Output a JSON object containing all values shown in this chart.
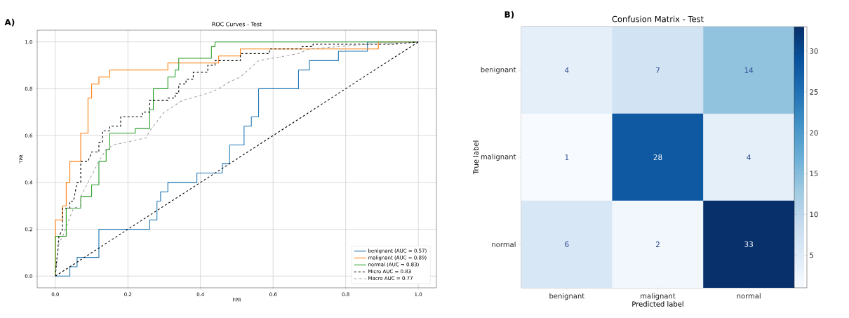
{
  "chart_data": [
    {
      "type": "line",
      "title": "ROC Curves - Test",
      "xlabel": "FPR",
      "ylabel": "TPR",
      "annotations": [
        "A)"
      ],
      "xlim": [
        -0.05,
        1.05
      ],
      "ylim": [
        -0.05,
        1.05
      ],
      "xticks": [
        {
          "value": 0,
          "label": "0.0"
        },
        {
          "value": 0.2,
          "label": "0.2"
        },
        {
          "value": 0.4,
          "label": "0.4"
        },
        {
          "value": 0.6,
          "label": "0.6"
        },
        {
          "value": 0.8,
          "label": "0.8"
        },
        {
          "value": 1,
          "label": "1.0"
        }
      ],
      "yticks": [
        {
          "value": 0,
          "label": "0.0"
        },
        {
          "value": 0.2,
          "label": "0.2"
        },
        {
          "value": 0.4,
          "label": "0.4"
        },
        {
          "value": 0.6,
          "label": "0.6"
        },
        {
          "value": 0.8,
          "label": "0.8"
        },
        {
          "value": 1,
          "label": "1.0"
        }
      ],
      "grid": true,
      "legend": "bottom right",
      "marker": "none",
      "series": [
        {
          "name": "benignant (AUC = 0.57)",
          "color": "#1f77b4",
          "line_style": "solid",
          "x": [
            0,
            0.04,
            0.04,
            0.06,
            0.06,
            0.12,
            0.12,
            0.26,
            0.26,
            0.28,
            0.28,
            0.29,
            0.29,
            0.31,
            0.31,
            0.39,
            0.39,
            0.46,
            0.46,
            0.48,
            0.48,
            0.52,
            0.52,
            0.54,
            0.54,
            0.56,
            0.56,
            0.67,
            0.67,
            0.7,
            0.7,
            0.78,
            0.78,
            0.86,
            0.86,
            1
          ],
          "values": [
            0,
            0,
            0.04,
            0.04,
            0.08,
            0.08,
            0.2,
            0.2,
            0.24,
            0.24,
            0.32,
            0.32,
            0.36,
            0.36,
            0.4,
            0.4,
            0.44,
            0.44,
            0.48,
            0.48,
            0.56,
            0.56,
            0.64,
            0.64,
            0.68,
            0.68,
            0.8,
            0.8,
            0.88,
            0.88,
            0.92,
            0.92,
            0.96,
            0.96,
            1,
            1
          ]
        },
        {
          "name": "malignant (AUC = 0.89)",
          "color": "#ff7f0e",
          "line_style": "solid",
          "x": [
            0,
            0,
            0.02,
            0.02,
            0.03,
            0.03,
            0.04,
            0.04,
            0.07,
            0.07,
            0.09,
            0.09,
            0.1,
            0.1,
            0.12,
            0.12,
            0.15,
            0.15,
            0.31,
            0.31,
            0.45,
            0.45,
            0.51,
            0.51,
            0.89,
            0.89,
            1
          ],
          "values": [
            0,
            0.24,
            0.24,
            0.3,
            0.3,
            0.4,
            0.4,
            0.49,
            0.49,
            0.61,
            0.61,
            0.76,
            0.76,
            0.82,
            0.82,
            0.85,
            0.85,
            0.88,
            0.88,
            0.91,
            0.91,
            0.94,
            0.94,
            0.97,
            0.97,
            1,
            1
          ]
        },
        {
          "name": "normal (AUC = 0.83)",
          "color": "#2ca02c",
          "line_style": "solid",
          "x": [
            0,
            0,
            0.03,
            0.03,
            0.07,
            0.07,
            0.1,
            0.1,
            0.12,
            0.12,
            0.14,
            0.14,
            0.15,
            0.15,
            0.22,
            0.22,
            0.26,
            0.26,
            0.27,
            0.27,
            0.31,
            0.31,
            0.33,
            0.33,
            0.34,
            0.34,
            0.43,
            0.43,
            0.44,
            0.44,
            1
          ],
          "values": [
            0,
            0.17,
            0.17,
            0.29,
            0.29,
            0.34,
            0.34,
            0.39,
            0.39,
            0.49,
            0.49,
            0.54,
            0.54,
            0.61,
            0.61,
            0.63,
            0.63,
            0.71,
            0.71,
            0.8,
            0.8,
            0.85,
            0.85,
            0.88,
            0.88,
            0.93,
            0.93,
            0.98,
            0.98,
            1,
            1
          ]
        },
        {
          "name": "Micro AUC = 0.83",
          "color": "#000000",
          "line_style": "dashed",
          "x": [
            0,
            0.01,
            0.02,
            0.02,
            0.04,
            0.04,
            0.05,
            0.06,
            0.07,
            0.07,
            0.09,
            0.1,
            0.12,
            0.12,
            0.13,
            0.13,
            0.15,
            0.15,
            0.18,
            0.18,
            0.24,
            0.24,
            0.26,
            0.26,
            0.31,
            0.31,
            0.33,
            0.33,
            0.34,
            0.34,
            0.36,
            0.36,
            0.38,
            0.38,
            0.42,
            0.42,
            0.44,
            0.44,
            0.51,
            0.51,
            0.59,
            0.59,
            0.68,
            0.68,
            0.71,
            0.71,
            0.93,
            1
          ],
          "values": [
            0,
            0.17,
            0.2,
            0.29,
            0.29,
            0.32,
            0.32,
            0.4,
            0.4,
            0.49,
            0.49,
            0.53,
            0.53,
            0.57,
            0.57,
            0.62,
            0.62,
            0.64,
            0.64,
            0.68,
            0.68,
            0.7,
            0.7,
            0.75,
            0.75,
            0.76,
            0.76,
            0.78,
            0.78,
            0.82,
            0.82,
            0.84,
            0.84,
            0.87,
            0.87,
            0.9,
            0.9,
            0.92,
            0.92,
            0.95,
            0.95,
            0.97,
            0.97,
            0.98,
            0.98,
            0.99,
            0.99,
            1
          ]
        },
        {
          "name": "Macro AUC = 0.77",
          "color": "#999999",
          "line_style": "dashdot",
          "x": [
            0,
            0.01,
            0.02,
            0.05,
            0.07,
            0.07,
            0.09,
            0.12,
            0.14,
            0.16,
            0.25,
            0.26,
            0.3,
            0.35,
            0.42,
            0.45,
            0.48,
            0.51,
            0.56,
            0.67,
            0.7,
            0.86,
            1
          ],
          "values": [
            0,
            0.14,
            0.17,
            0.29,
            0.3,
            0.34,
            0.4,
            0.49,
            0.54,
            0.56,
            0.59,
            0.62,
            0.7,
            0.75,
            0.78,
            0.8,
            0.83,
            0.85,
            0.92,
            0.95,
            0.97,
            0.99,
            1
          ]
        },
        {
          "color": "#000000",
          "line_style": "dashed",
          "x": [
            0,
            1
          ],
          "values": [
            0,
            1
          ]
        }
      ]
    },
    {
      "type": "heatmap",
      "title": "Confusion Matrix - Test",
      "xlabel": "Predicted label",
      "ylabel": "True label",
      "annotations": [
        "B)"
      ],
      "categories": [
        "benignant",
        "malignant",
        "normal"
      ],
      "y_categories": [
        "benignant",
        "malignant",
        "normal"
      ],
      "cells": [
        [
          4,
          7,
          14
        ],
        [
          1,
          28,
          4
        ],
        [
          6,
          2,
          33
        ]
      ],
      "clim": [
        1,
        33
      ],
      "cticks": [
        5,
        10,
        15,
        20,
        25,
        30
      ],
      "data_labels": true
    }
  ]
}
